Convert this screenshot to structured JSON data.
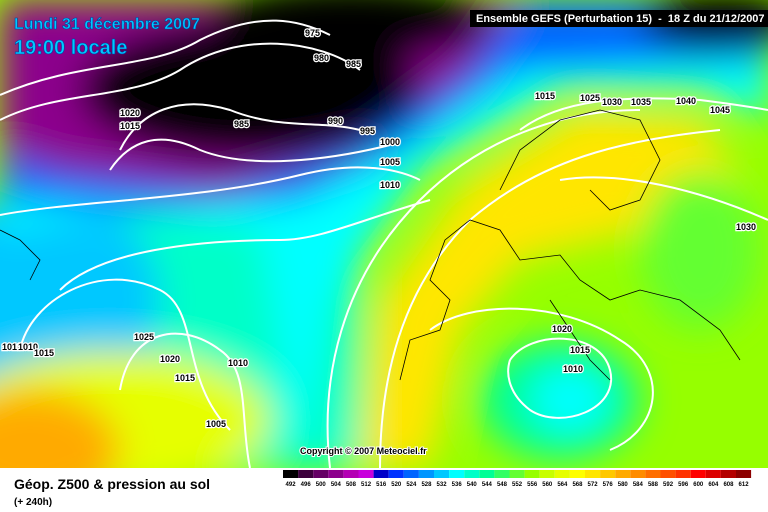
{
  "header": {
    "date": "Lundi 31 décembre 2007",
    "time": "19:00 locale",
    "model": "Ensemble GEFS (Perturbation 15)  -  18 Z du 21/12/2007"
  },
  "isobars": [
    975,
    980,
    985,
    1020,
    1015,
    985,
    990,
    995,
    1000,
    1005,
    1010,
    1015,
    1025,
    1030,
    1035,
    1040,
    1045,
    1030,
    1025,
    1020,
    1015,
    1010,
    1005,
    1020,
    1015,
    1010,
    1010,
    1010,
    1015
  ],
  "copyright": "Copyright © 2007 Meteociel.fr",
  "caption": {
    "title": "Géop. Z500 & pression au sol",
    "lead": "(+ 240h)"
  },
  "legend": {
    "values": [
      492,
      496,
      500,
      504,
      508,
      512,
      516,
      520,
      524,
      528,
      532,
      536,
      540,
      544,
      548,
      552,
      556,
      560,
      564,
      568,
      572,
      576,
      580,
      584,
      588,
      592,
      596,
      600,
      604,
      608,
      612
    ],
    "colors": [
      "#000000",
      "#3c003c",
      "#640064",
      "#8c008c",
      "#b400b4",
      "#c800dc",
      "#0000c8",
      "#0032ff",
      "#0064ff",
      "#0096ff",
      "#00c8ff",
      "#00ffff",
      "#00ffc8",
      "#00ff96",
      "#32ff64",
      "#64ff32",
      "#96ff00",
      "#c8ff00",
      "#e6ff00",
      "#ffff00",
      "#ffe600",
      "#ffc800",
      "#ffaa00",
      "#ff8c00",
      "#ff6e00",
      "#ff5000",
      "#ff3200",
      "#ff0000",
      "#dc0000",
      "#b40000",
      "#8c0000"
    ]
  }
}
